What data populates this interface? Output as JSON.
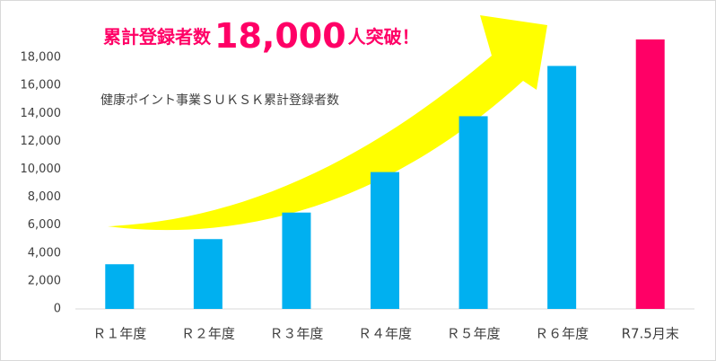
{
  "chart_data": {
    "type": "bar",
    "annotation": [
      "累計登録者数",
      "18,000",
      "人突破！"
    ],
    "subtitle": "健康ポイント事業ＳＵＫＳＫ累計登録者数",
    "categories": [
      "Ｒ１年度",
      "Ｒ２年度",
      "Ｒ３年度",
      "Ｒ４年度",
      "Ｒ５年度",
      "Ｒ６年度",
      "R7.5月末"
    ],
    "values": [
      3200,
      5000,
      6900,
      9800,
      13800,
      17400,
      19300
    ],
    "colors": [
      "#00b0f0",
      "#00b0f0",
      "#00b0f0",
      "#00b0f0",
      "#00b0f0",
      "#00b0f0",
      "#ff0066"
    ],
    "ylim": [
      0,
      20000
    ],
    "yticks": [
      0,
      {
        "value": 2000,
        "label": "2,000"
      },
      {
        "value": 4000,
        "label": "4,000"
      },
      {
        "value": 6000,
        "label": "6,000"
      },
      {
        "value": 8000,
        "label": "8,000"
      },
      {
        "value": 10000,
        "label": "10,000"
      },
      {
        "value": 12000,
        "label": "12,000"
      },
      {
        "value": 14000,
        "label": "14,000"
      },
      {
        "value": 16000,
        "label": "16,000"
      },
      {
        "value": 18000,
        "label": "18,000"
      }
    ],
    "grid": false
  }
}
